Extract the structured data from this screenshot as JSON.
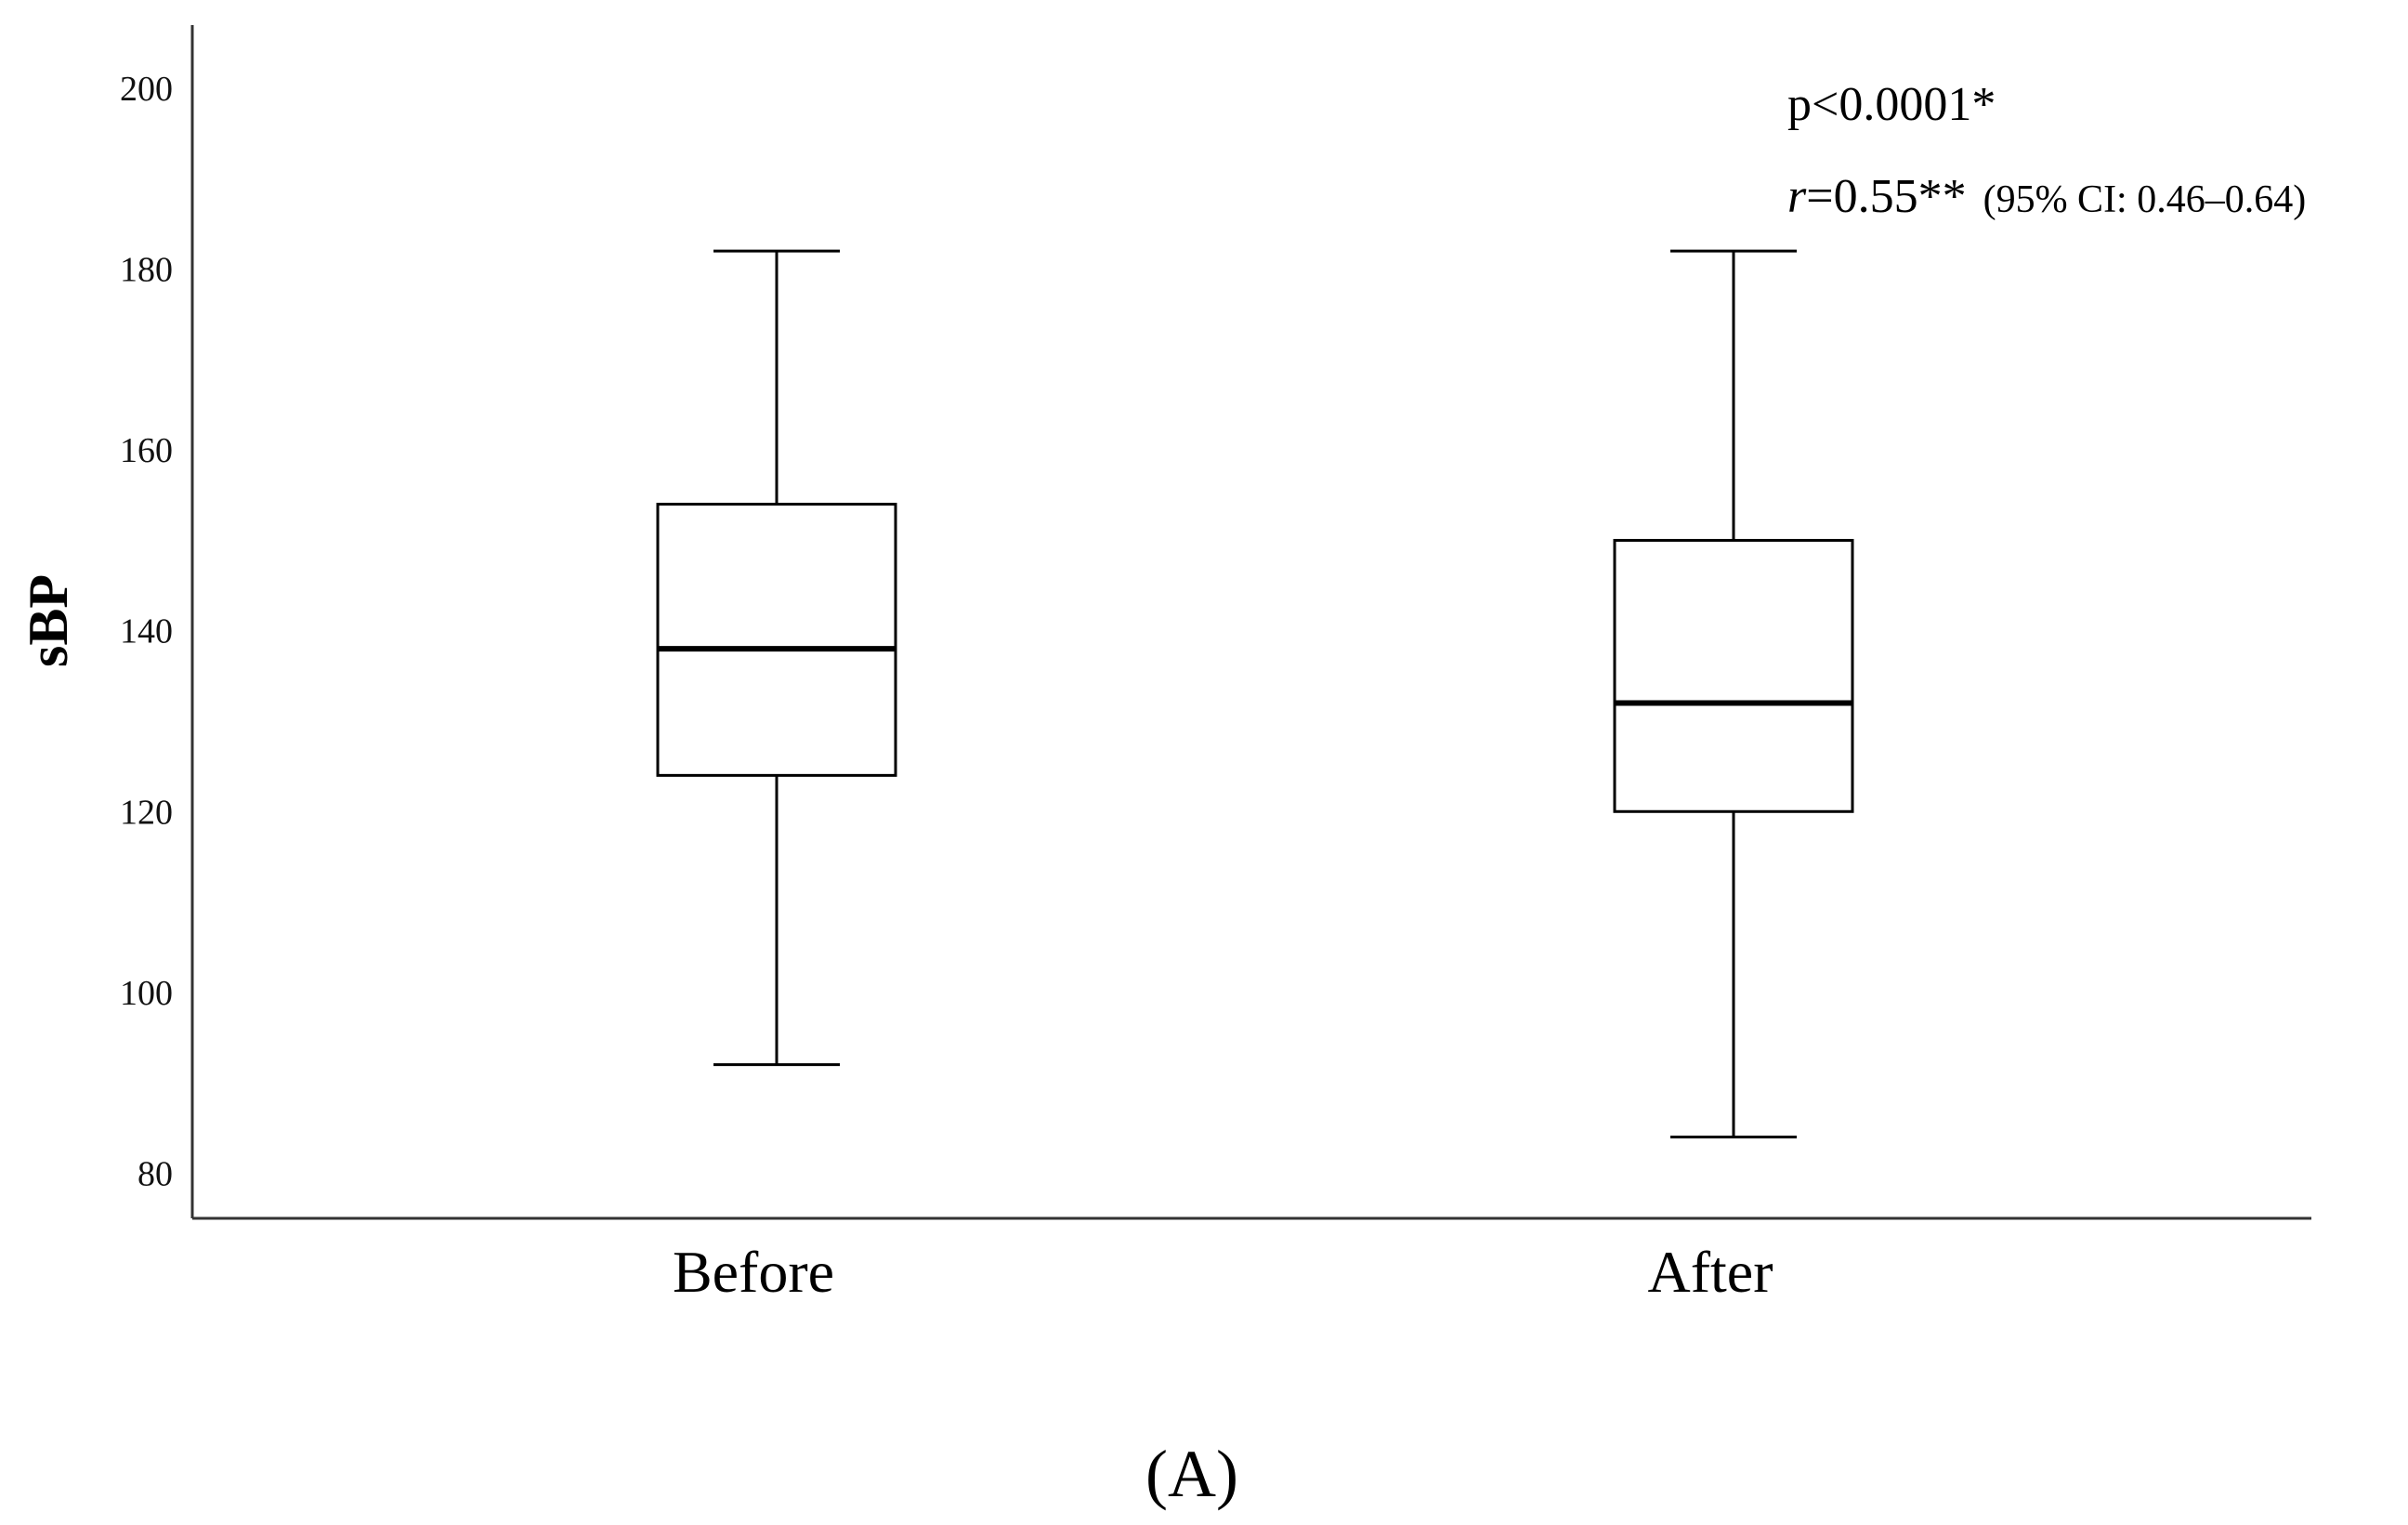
{
  "chart_data": {
    "type": "box",
    "ylabel": "sBP",
    "ylim": [
      75,
      207
    ],
    "yticks": [
      80,
      100,
      120,
      140,
      160,
      180,
      200
    ],
    "categories": [
      "Before",
      "After"
    ],
    "boxes": [
      {
        "category": "Before",
        "min": 92,
        "q1": 124,
        "median": 138,
        "q3": 154,
        "max": 182
      },
      {
        "category": "After",
        "min": 84,
        "q1": 120,
        "median": 132,
        "q3": 150,
        "max": 182
      }
    ],
    "annotations": {
      "p_value": "p<0.0001*",
      "r_symbol": "r",
      "r_value": "=0.55**",
      "ci": "(95% CI: 0.46–0.64)"
    },
    "panel_label": "(A)",
    "grid": false,
    "colors": {
      "box_stroke": "#000000",
      "box_fill": "#ffffff",
      "axis": "#333333"
    }
  }
}
